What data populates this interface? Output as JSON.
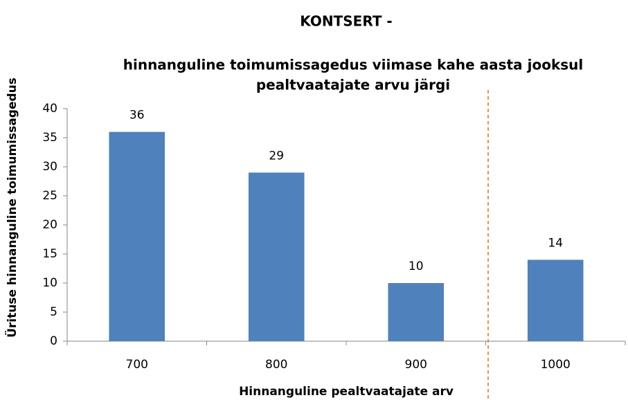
{
  "chart_data": {
    "type": "bar",
    "title": "KONTSERT -",
    "subtitle": [
      "hinnanguline toimumissagedus  viimase kahe aasta jooksul",
      "pealtvaatajate arvu järgi"
    ],
    "x_label": "Hinnanguline  pealtvaatajate arv",
    "y_label": "Ürituse hinnanguline toimumissagedus",
    "categories": [
      "700",
      "800",
      "900",
      "1000"
    ],
    "values": [
      36,
      29,
      10,
      14
    ],
    "color": "#4f81bd",
    "ylim": [
      0,
      40
    ],
    "yticks": [
      0,
      5,
      10,
      15,
      20,
      25,
      30,
      35,
      40
    ],
    "grid": false
  }
}
